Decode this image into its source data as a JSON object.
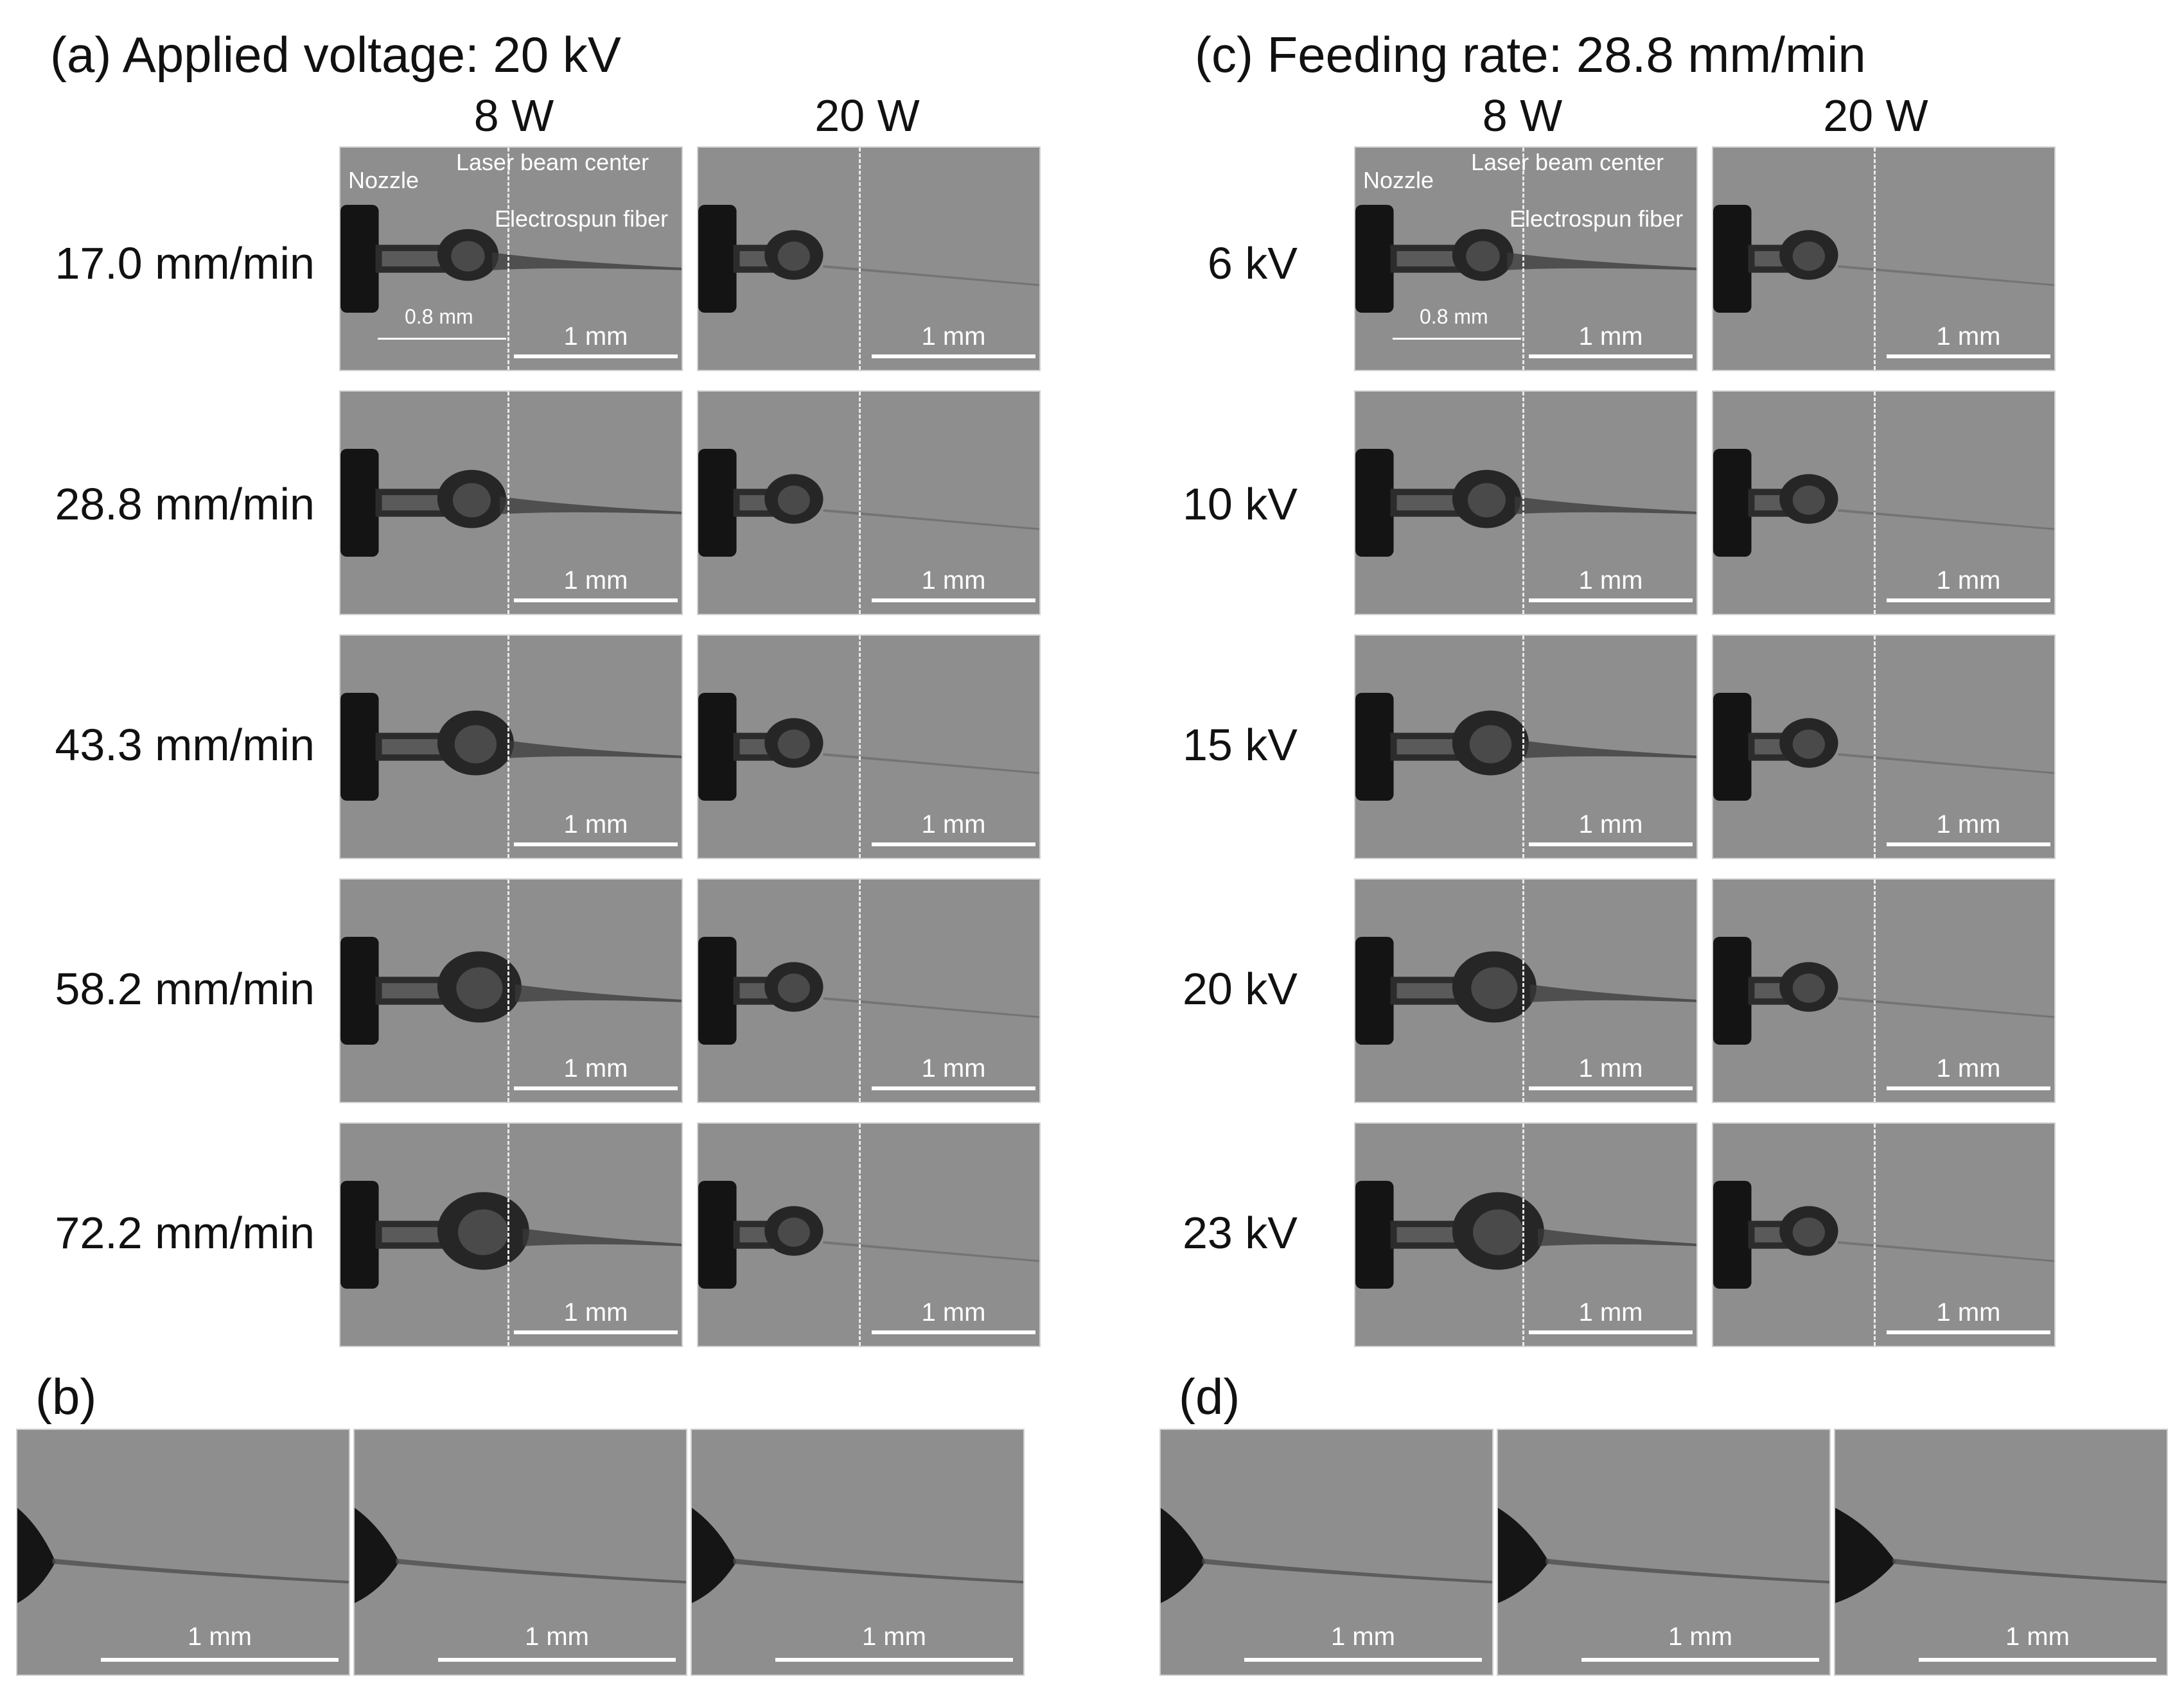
{
  "figure": {
    "left_title": "(a) Applied voltage: 20 kV",
    "right_title": "(c) Feeding rate: 28.8 mm/min",
    "col_headers": [
      "8 W",
      "20 W"
    ],
    "left_rows": [
      "17.0 mm/min",
      "28.8 mm/min",
      "43.3 mm/min",
      "58.2 mm/min",
      "72.2 mm/min"
    ],
    "right_rows": [
      "6 kV",
      "10 kV",
      "15 kV",
      "20 kV",
      "23 kV"
    ],
    "scale_label": "1 mm",
    "annotations": {
      "nozzle": "Nozzle",
      "laser_center": "Laser beam center",
      "fiber": "Electrospun fiber",
      "distance": "0.8 mm"
    },
    "label_b": "(b)",
    "label_d": "(d)"
  }
}
